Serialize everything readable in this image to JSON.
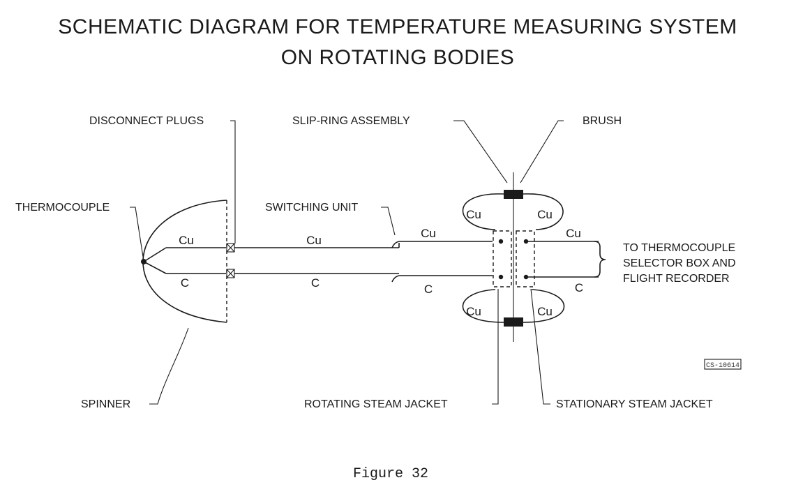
{
  "title": {
    "line1": "SCHEMATIC DIAGRAM FOR TEMPERATURE MEASURING SYSTEM",
    "line2": "ON ROTATING BODIES"
  },
  "labels": {
    "disconnect_plugs": "DISCONNECT PLUGS",
    "slip_ring_assembly": "SLIP-RING ASSEMBLY",
    "brush": "BRUSH",
    "thermocouple": "THERMOCOUPLE",
    "switching_unit": "SWITCHING UNIT",
    "to_selector_line1": "TO THERMOCOUPLE",
    "to_selector_line2": "SELECTOR BOX AND",
    "to_selector_line3": "FLIGHT RECORDER",
    "spinner": "SPINNER",
    "rotating_steam_jacket": "ROTATING STEAM JACKET",
    "stationary_steam_jacket": "STATIONARY STEAM JACKET",
    "stamp": "CS-10614"
  },
  "wires": {
    "cu": "Cu",
    "c": "C"
  },
  "caption": "Figure 32"
}
